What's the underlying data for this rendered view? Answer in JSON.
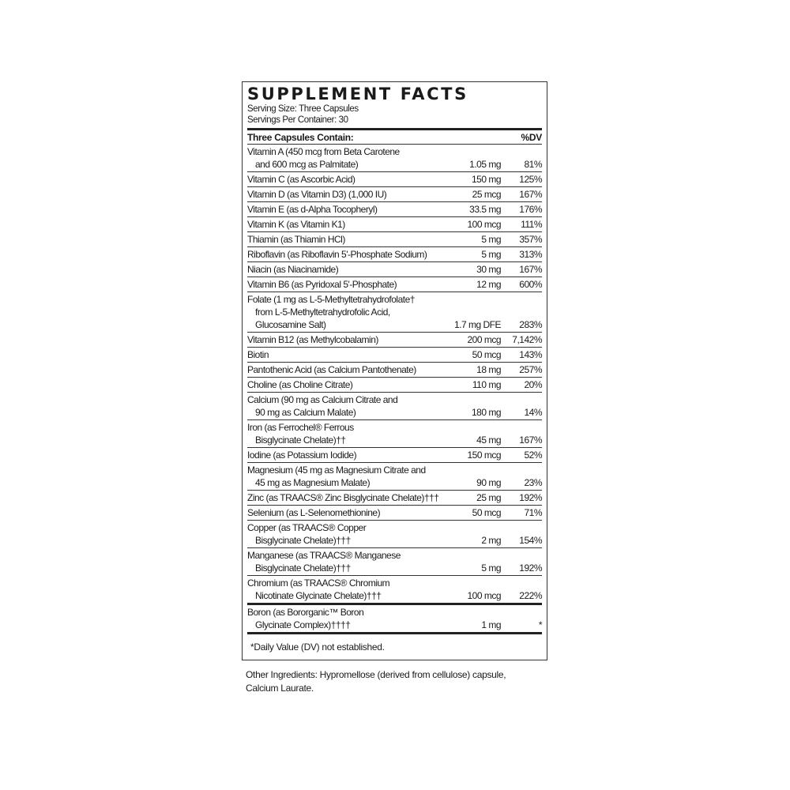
{
  "title": "SUPPLEMENT FACTS",
  "serving_size": "Serving Size: Three Capsules",
  "servings_per_container": "Servings Per Container: 30",
  "header": {
    "left": "Three Capsules Contain:",
    "right": "%DV"
  },
  "rows": [
    {
      "lines": [
        "Vitamin A (450 mcg from Beta Carotene",
        "and 600 mcg as Palmitate)"
      ],
      "amount": "1.05 mg",
      "dv": "81%"
    },
    {
      "lines": [
        "Vitamin C (as Ascorbic Acid)"
      ],
      "amount": "150 mg",
      "dv": "125%"
    },
    {
      "lines": [
        "Vitamin D (as Vitamin D3) (1,000 IU)"
      ],
      "amount": "25 mcg",
      "dv": "167%"
    },
    {
      "lines": [
        "Vitamin E (as d-Alpha Tocopheryl)"
      ],
      "amount": "33.5 mg",
      "dv": "176%"
    },
    {
      "lines": [
        "Vitamin K (as Vitamin K1)"
      ],
      "amount": "100 mcg",
      "dv": "111%"
    },
    {
      "lines": [
        "Thiamin (as Thiamin HCl)"
      ],
      "amount": "5 mg",
      "dv": "357%"
    },
    {
      "lines": [
        "Riboflavin (as Riboflavin 5'-Phosphate Sodium)"
      ],
      "amount": "5 mg",
      "dv": "313%"
    },
    {
      "lines": [
        "Niacin (as Niacinamide)"
      ],
      "amount": "30 mg",
      "dv": "167%"
    },
    {
      "lines": [
        "Vitamin B6 (as Pyridoxal 5'-Phosphate)"
      ],
      "amount": "12 mg",
      "dv": "600%"
    },
    {
      "lines": [
        "Folate (1 mg as L-5-Methyltetrahydrofolate†",
        "from L-5-Methyltetrahydrofolic Acid,",
        "Glucosamine Salt)"
      ],
      "amount": "1.7 mg DFE",
      "dv": "283%"
    },
    {
      "lines": [
        "Vitamin B12 (as Methylcobalamin)"
      ],
      "amount": "200 mcg",
      "dv": "7,142%"
    },
    {
      "lines": [
        "Biotin"
      ],
      "amount": "50 mcg",
      "dv": "143%"
    },
    {
      "lines": [
        "Pantothenic Acid (as Calcium Pantothenate)"
      ],
      "amount": "18 mg",
      "dv": "257%"
    },
    {
      "lines": [
        "Choline (as Choline Citrate)"
      ],
      "amount": "110 mg",
      "dv": "20%"
    },
    {
      "lines": [
        "Calcium (90 mg as Calcium Citrate and",
        "90 mg as Calcium Malate)"
      ],
      "amount": "180 mg",
      "dv": "14%"
    },
    {
      "lines": [
        "Iron (as Ferrochel® Ferrous",
        "Bisglycinate Chelate)††"
      ],
      "amount": "45 mg",
      "dv": "167%"
    },
    {
      "lines": [
        "Iodine (as Potassium Iodide)"
      ],
      "amount": "150 mcg",
      "dv": "52%"
    },
    {
      "lines": [
        "Magnesium (45 mg as Magnesium Citrate and",
        "45 mg as Magnesium Malate)"
      ],
      "amount": "90 mg",
      "dv": "23%"
    },
    {
      "lines": [
        "Zinc (as TRAACS® Zinc Bisglycinate Chelate)†††"
      ],
      "amount": "25 mg",
      "dv": "192%"
    },
    {
      "lines": [
        "Selenium (as L-Selenomethionine)"
      ],
      "amount": "50 mcg",
      "dv": "71%"
    },
    {
      "lines": [
        "Copper (as TRAACS® Copper",
        "Bisglycinate Chelate)†††"
      ],
      "amount": "2 mg",
      "dv": "154%"
    },
    {
      "lines": [
        "Manganese (as TRAACS® Manganese",
        "Bisglycinate Chelate)†††"
      ],
      "amount": "5 mg",
      "dv": "192%"
    },
    {
      "lines": [
        "Chromium (as TRAACS® Chromium",
        "Nicotinate Glycinate Chelate)†††"
      ],
      "amount": "100 mcg",
      "dv": "222%"
    },
    {
      "lines": [
        "Boron (as Bororganic™ Boron",
        "Glycinate Complex)††††"
      ],
      "amount": "1 mg",
      "dv": "*",
      "thick_top": true
    }
  ],
  "footnote": "*Daily Value (DV) not established.",
  "other_ingredients": [
    "Other Ingredients: Hypromellose (derived from cellulose) capsule,",
    "Calcium Laurate."
  ]
}
